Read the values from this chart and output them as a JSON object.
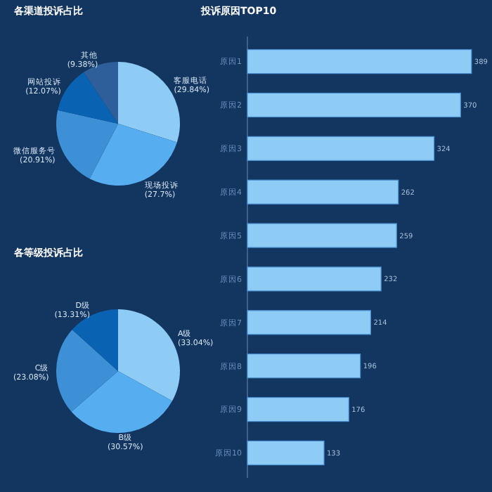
{
  "chart_data": [
    {
      "type": "pie",
      "title": "各渠道投诉占比",
      "categories": [
        "客服电话",
        "现场投诉",
        "微信服务号",
        "网站投诉",
        "其他"
      ],
      "values": [
        29.84,
        27.7,
        20.91,
        12.07,
        9.38
      ],
      "value_labels": [
        "(29.84%)",
        "(27.7%)",
        "(20.91%)",
        "(12.07%)",
        "(9.38%)"
      ],
      "colors": [
        "#8ecbf5",
        "#56aef0",
        "#3e90d6",
        "#0a62b2",
        "#2f5f9a"
      ]
    },
    {
      "type": "pie",
      "title": "各等级投诉占比",
      "categories": [
        "A级",
        "B级",
        "C级",
        "D级"
      ],
      "values": [
        33.04,
        30.57,
        23.08,
        13.31
      ],
      "value_labels": [
        "(33.04%)",
        "(30.57%)",
        "(23.08%)",
        "(13.31%)"
      ],
      "colors": [
        "#8ecbf5",
        "#56aef0",
        "#3e90d6",
        "#0a62b2"
      ]
    },
    {
      "type": "bar",
      "orientation": "horizontal",
      "title": "投诉原因TOP10",
      "categories": [
        "原因1",
        "原因2",
        "原因3",
        "原因4",
        "原因5",
        "原因6",
        "原因7",
        "原因8",
        "原因9",
        "原因10"
      ],
      "values": [
        389,
        370,
        324,
        262,
        259,
        232,
        214,
        196,
        176,
        133
      ],
      "data_labels": true,
      "color": "#8ecbf5"
    }
  ]
}
